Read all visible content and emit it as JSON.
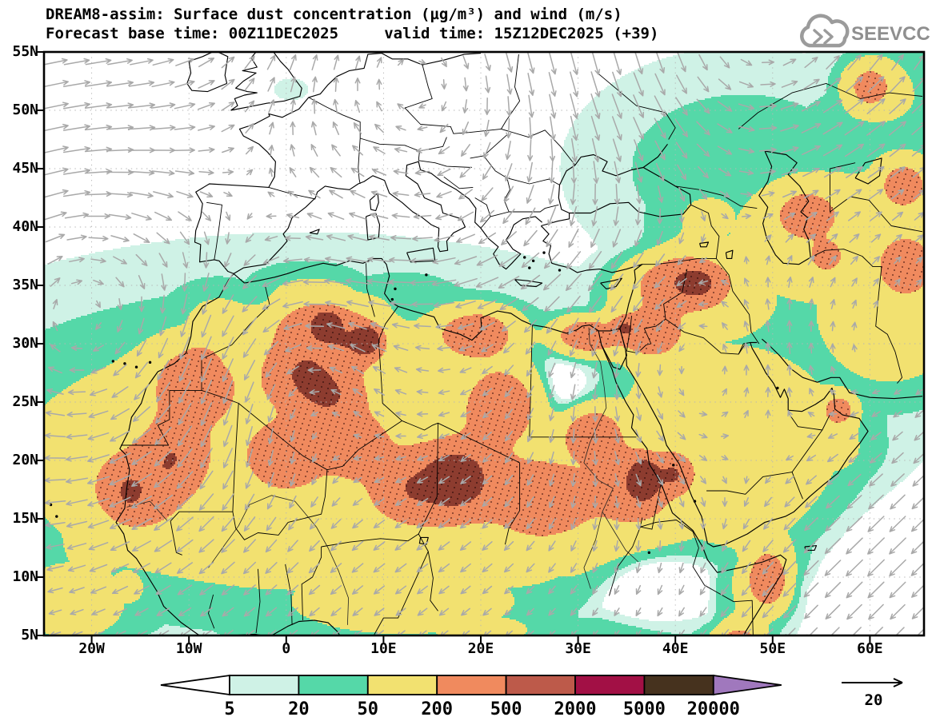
{
  "header": {
    "title_line1": "DREAM8-assim: Surface dust concentration (µg/m³) and wind (m/s)",
    "title_line2": "Forecast base time: 00Z11DEC2025     valid time: 15Z12DEC2025 (+39)",
    "logo_text": "SEEVCCC"
  },
  "axes": {
    "lat_labels": [
      "55N",
      "50N",
      "45N",
      "40N",
      "35N",
      "30N",
      "25N",
      "20N",
      "15N",
      "10N",
      "5N"
    ],
    "lon_labels": [
      "20W",
      "10W",
      "0",
      "10E",
      "20E",
      "30E",
      "40E",
      "50E",
      "60E"
    ]
  },
  "legend": {
    "boundary_labels": [
      "5",
      "20",
      "50",
      "200",
      "500",
      "2000",
      "5000",
      "20000"
    ],
    "colors": [
      "#ffffff",
      "#cff2e6",
      "#55d8a8",
      "#f2e170",
      "#f08a5e",
      "#bd5a4a",
      "#a21045",
      "#46321e",
      "#a078bd"
    ]
  },
  "wind_reference": {
    "label": "20"
  },
  "chart_data": {
    "type": "heatmap",
    "title": "DREAM8-assim: Surface dust concentration (µg/m³) and wind (m/s)",
    "subtitle": "Forecast base time: 00Z11DEC2025  valid time: 15Z12DEC2025 (+39)",
    "model": "DREAM8-assim",
    "variable": "Surface dust concentration",
    "units": "µg/m³",
    "wind_units": "m/s",
    "forecast_base_time": "00Z11DEC2025",
    "valid_time": "15Z12DEC2025",
    "forecast_hour": "+39",
    "xlabel": "longitude",
    "ylabel": "latitude",
    "x_tick_labels": [
      "20W",
      "10W",
      "0",
      "10E",
      "20E",
      "30E",
      "40E",
      "50E",
      "60E"
    ],
    "y_tick_labels": [
      "5N",
      "10N",
      "15N",
      "20N",
      "25N",
      "30N",
      "35N",
      "40N",
      "45N",
      "50N",
      "55N"
    ],
    "lon_range": [
      -24.9,
      65.5
    ],
    "lat_range": [
      5,
      55
    ],
    "contour_levels": [
      5,
      20,
      50,
      200,
      500,
      2000,
      5000,
      20000
    ],
    "level_colors": [
      "#ffffff",
      "#cff2e6",
      "#55d8a8",
      "#f2e170",
      "#f08a5e",
      "#bd5a4a",
      "#a21045",
      "#46321e",
      "#a078bd"
    ],
    "wind_reference_speed": 20,
    "grid": "dotted graticule, 10 deg lon x 5 deg lat",
    "legend_position": "bottom",
    "features": [
      {
        "name": "Bodele / Chad dust maximum",
        "lon": 17.5,
        "lat": 18.3,
        "approx_max": 2500
      },
      {
        "name": "Sudan-Eritrea dust maximum",
        "lon": 36.8,
        "lat": 18.4,
        "approx_max": 1800
      },
      {
        "name": "Northern Algeria dust cores",
        "lon": 4.2,
        "lat": 31.7,
        "approx_max": 1500
      },
      {
        "name": "Mauritania coastal maximum",
        "lon": -16.0,
        "lat": 17.4,
        "approx_max": 1000
      },
      {
        "name": "Saharan background plume",
        "lon": 5,
        "lat": 22,
        "approx_value": 150
      },
      {
        "name": "SE Libya plume",
        "lon": 22.5,
        "lat": 25,
        "approx_max": 450
      },
      {
        "name": "Cairo / Nile delta plume",
        "lon": 31,
        "lat": 30.6,
        "approx_max": 450
      },
      {
        "name": "N Syria - Iraq plume",
        "lon": 40.5,
        "lat": 35.3,
        "approx_max": 430
      },
      {
        "name": "Jordan - NW Saudi plume",
        "lon": 37.5,
        "lat": 30.8,
        "approx_max": 420
      },
      {
        "name": "Egypt south plume",
        "lon": 31.5,
        "lat": 22.3,
        "approx_max": 430
      },
      {
        "name": "Somalia coastal spots",
        "lon": 49.5,
        "lat": 9.8,
        "approx_max": 420
      },
      {
        "name": "East-of-Caspian plume",
        "lon": 53.5,
        "lat": 41,
        "approx_max": 430
      },
      {
        "name": "NE Iran / Afghan plume",
        "lon": 63.8,
        "lat": 36.8,
        "approx_max": 420
      },
      {
        "name": "Central Asia band",
        "lon": 56,
        "lat": 39,
        "approx_value": 100
      },
      {
        "name": "Gulf of Guinea band",
        "lon": 12,
        "lat": 8,
        "approx_value": 60
      },
      {
        "name": "Atlantic band off West Africa",
        "lon": -20,
        "lat": 13,
        "approx_value": 55
      }
    ],
    "wind_flow": [
      {
        "region": "NE Atlantic west of Iberia",
        "direction": "eastward"
      },
      {
        "region": "Subtropical Atlantic off West Africa",
        "direction": "southwestward trade winds"
      },
      {
        "region": "Sahara / Sahel",
        "direction": "south-southwestward harmattan"
      },
      {
        "region": "Central Sahara around 0E,27N",
        "direction": "cyclonic turning, northeastward on SE flank"
      },
      {
        "region": "Eastern Mediterranean",
        "direction": "westward"
      },
      {
        "region": "Egypt / Red Sea",
        "direction": "southward"
      },
      {
        "region": "Central and eastern Arabia",
        "direction": "north-northeastward"
      },
      {
        "region": "Arabian Sea",
        "direction": "southwestward NE monsoon"
      },
      {
        "region": "Western Europe",
        "direction": "northward"
      },
      {
        "region": "Black Sea / Ukraine",
        "direction": "south-southeastward"
      },
      {
        "region": "North of Caspian / Kazakhstan",
        "direction": "eastward to northeastward"
      }
    ]
  }
}
